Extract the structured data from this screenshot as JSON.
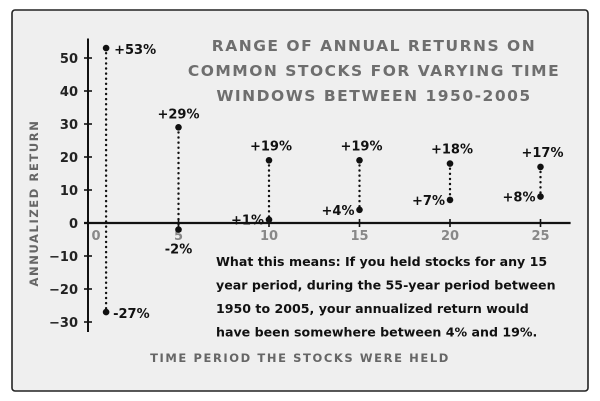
{
  "chart_data": {
    "type": "range",
    "title": [
      "RANGE OF ANNUAL RETURNS ON",
      "COMMON STOCKS FOR VARYING TIME",
      "WINDOWS BETWEEN 1950-2005"
    ],
    "xlabel": "TIME PERIOD THE STOCKS WERE HELD",
    "ylabel": "ANNUALIZED RETURN",
    "xlim": [
      0,
      26
    ],
    "ylim": [
      -30,
      55
    ],
    "x_ticks": [
      0,
      5,
      10,
      15,
      20,
      25
    ],
    "y_ticks": [
      50,
      40,
      30,
      20,
      10,
      0,
      -10,
      -20,
      -30
    ],
    "x_tick_labels": [
      "0",
      "5",
      "10",
      "15",
      "20",
      "25"
    ],
    "y_tick_labels": [
      "50",
      "40",
      "30",
      "20",
      "10",
      "0",
      "−10",
      "−20",
      "−30"
    ],
    "series": [
      {
        "points": [
          {
            "x": 1,
            "high": 53,
            "low": -27,
            "high_label": "+53%",
            "low_label": "-27%"
          },
          {
            "x": 5,
            "high": 29,
            "low": -2,
            "high_label": "+29%",
            "low_label": "-2%"
          },
          {
            "x": 10,
            "high": 19,
            "low": 1,
            "high_label": "+19%",
            "low_label": "+1%"
          },
          {
            "x": 15,
            "high": 19,
            "low": 4,
            "high_label": "+19%",
            "low_label": "+4%"
          },
          {
            "x": 20,
            "high": 18,
            "low": 7,
            "high_label": "+18%",
            "low_label": "+7%"
          },
          {
            "x": 25,
            "high": 17,
            "low": 8,
            "high_label": "+17%",
            "low_label": "+8%"
          }
        ]
      }
    ],
    "annotation": [
      "What this means: If you held stocks for any 15",
      "year period, during the 55-year period between",
      "1950 to 2005, your annualized return would",
      "have been somewhere between 4% and 19%."
    ],
    "colors": {
      "background": "#efefef",
      "border": "#222222",
      "axis": "#111111",
      "dots": "#111111"
    },
    "grid": false
  }
}
